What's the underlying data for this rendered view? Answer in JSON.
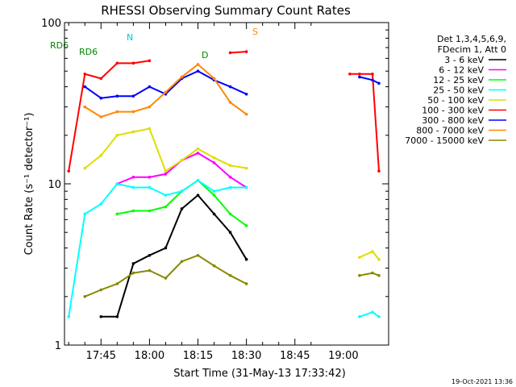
{
  "chart_data": {
    "type": "line",
    "title": "RHESSI Observing Summary Count Rates",
    "xlabel": "Start Time (31-May-13 17:33:42)",
    "ylabel": "Count Rate (s⁻¹ detector⁻¹)",
    "yscale": "log",
    "ylim": [
      1,
      100
    ],
    "xlim": [
      "17:33:42",
      "19:14:00"
    ],
    "x_ticks": [
      "17:45",
      "18:00",
      "18:15",
      "18:30",
      "18:45",
      "19:00"
    ],
    "y_ticks": [
      "1",
      "10",
      "100"
    ],
    "timestamp": "19-Oct-2021 13:36",
    "legend_header": [
      "Det 1,3,4,5,6,9,",
      "FDecim 1, Att 0"
    ],
    "x": [
      "17:35",
      "17:40",
      "17:45",
      "17:50",
      "17:55",
      "18:00",
      "18:05",
      "18:10",
      "18:15",
      "18:20",
      "18:25",
      "18:30",
      "18:33",
      "19:02",
      "19:05",
      "19:09",
      "19:11"
    ],
    "series": [
      {
        "name": "3 - 6 keV",
        "color": "#000000",
        "values": [
          null,
          null,
          1.5,
          1.5,
          3.2,
          3.6,
          4.0,
          7.0,
          8.5,
          6.5,
          5.0,
          3.4,
          null,
          null,
          null,
          null,
          null
        ]
      },
      {
        "name": "6 - 12 keV",
        "color": "#ff00ff",
        "values": [
          null,
          null,
          null,
          10.0,
          11.0,
          11.0,
          11.5,
          14.0,
          15.5,
          13.5,
          11.0,
          9.5,
          null,
          null,
          null,
          null,
          null
        ]
      },
      {
        "name": "12 - 25 keV",
        "color": "#00ff00",
        "values": [
          null,
          null,
          null,
          6.5,
          6.8,
          6.8,
          7.2,
          9.0,
          10.5,
          8.5,
          6.5,
          5.5,
          null,
          null,
          null,
          null,
          null
        ]
      },
      {
        "name": "25 - 50 keV",
        "color": "#00ffff",
        "values": [
          1.5,
          6.5,
          7.5,
          10.0,
          9.5,
          9.5,
          8.5,
          9.0,
          10.5,
          9.0,
          9.5,
          9.5,
          null,
          null,
          1.5,
          1.6,
          1.5
        ]
      },
      {
        "name": "50 - 100 keV",
        "color": "#dddd00",
        "values": [
          null,
          12.5,
          15.0,
          20.0,
          21.0,
          22.0,
          12.0,
          14.0,
          16.5,
          14.5,
          13.0,
          12.5,
          null,
          null,
          3.5,
          3.8,
          3.4
        ]
      },
      {
        "name": "100 - 300 keV",
        "color": "#ff0000",
        "values": [
          12.0,
          48.0,
          45.0,
          56.0,
          56.0,
          58.0,
          null,
          null,
          null,
          null,
          65.0,
          66.0,
          null,
          48.0,
          48.0,
          48.0,
          12.0
        ]
      },
      {
        "name": "300 - 800 keV",
        "color": "#0000ff",
        "values": [
          null,
          40.0,
          34.0,
          35.0,
          35.0,
          40.0,
          36.0,
          45.0,
          50.0,
          44.0,
          40.0,
          36.0,
          null,
          null,
          46.0,
          44.0,
          42.0
        ]
      },
      {
        "name": "800 - 7000 keV",
        "color": "#ff8800",
        "values": [
          null,
          30.0,
          26.0,
          28.0,
          28.0,
          30.0,
          37.0,
          46.0,
          55.0,
          45.0,
          32.0,
          27.0,
          null,
          null,
          null,
          null,
          null
        ]
      },
      {
        "name": "7000 - 15000 keV",
        "color": "#888800",
        "values": [
          null,
          2.0,
          2.2,
          2.4,
          2.8,
          2.9,
          2.6,
          3.3,
          3.6,
          3.1,
          2.7,
          2.4,
          null,
          null,
          2.7,
          2.8,
          2.7
        ]
      }
    ],
    "annotations": [
      {
        "text": "RD6",
        "color": "#008800"
      },
      {
        "text": "RD6",
        "color": "#008800"
      },
      {
        "text": "N",
        "color": "#00cccc"
      },
      {
        "text": "S",
        "color": "#ff8800"
      },
      {
        "text": "D",
        "color": "#008800"
      }
    ]
  }
}
